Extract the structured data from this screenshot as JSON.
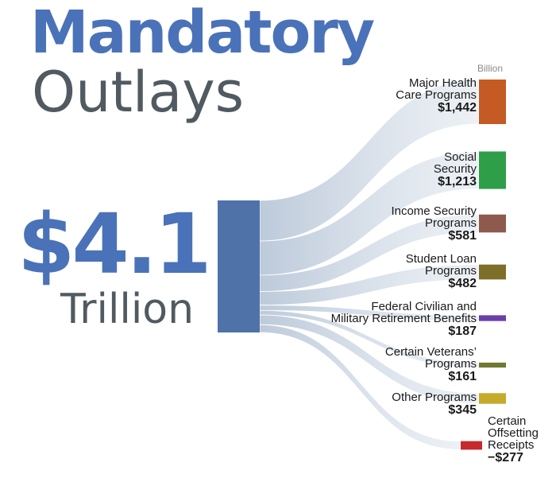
{
  "title_line1": "Mandatory",
  "title_line2": "Outlays",
  "total_value": "$4.1",
  "total_unit": "Trillion",
  "chart_data": {
    "type": "sankey",
    "unit_label": "Billion",
    "source": {
      "label": "$4.1 Trillion",
      "value": 4.1
    },
    "flows": [
      {
        "name": "Major Health Care Programs",
        "lines": [
          "Major Health",
          "Care Programs"
        ],
        "value": 1442,
        "display": "$1,442",
        "color": "#c55a24"
      },
      {
        "name": "Social Security",
        "lines": [
          "Social",
          "Security"
        ],
        "value": 1213,
        "display": "$1,213",
        "color": "#2e9e48"
      },
      {
        "name": "Income Security Programs",
        "lines": [
          "Income Security",
          "Programs"
        ],
        "value": 581,
        "display": "$581",
        "color": "#8e5a4e"
      },
      {
        "name": "Student Loan Programs",
        "lines": [
          "Student Loan",
          "Programs"
        ],
        "value": 482,
        "display": "$482",
        "color": "#7d6e28"
      },
      {
        "name": "Federal Civilian and Military Retirement Benefits",
        "lines": [
          "Federal Civilian and",
          "Military Retirement Benefits"
        ],
        "value": 187,
        "display": "$187",
        "color": "#6a40a8"
      },
      {
        "name": "Certain Veterans' Programs",
        "lines": [
          "Certain Veterans’",
          "Programs"
        ],
        "value": 161,
        "display": "$161",
        "color": "#707830"
      },
      {
        "name": "Other Programs",
        "lines": [
          "Other Programs"
        ],
        "value": 345,
        "display": "$345",
        "color": "#c4ab2c"
      },
      {
        "name": "Certain Offsetting Receipts",
        "lines": [
          "Certain",
          "Offsetting",
          "Receipts"
        ],
        "value": -277,
        "display": "−$277",
        "color": "#c72a2e"
      }
    ]
  }
}
